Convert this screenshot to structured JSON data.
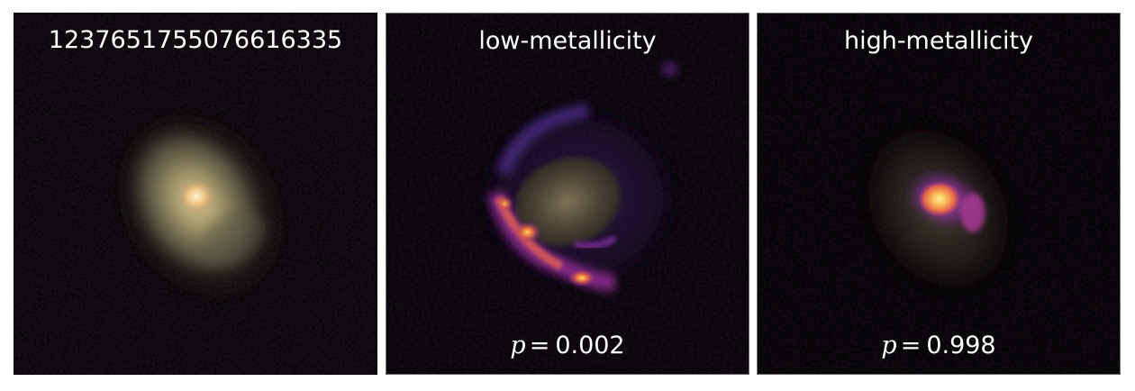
{
  "panels": [
    {
      "title": "1237651755076616335"
    },
    {
      "title": "low-metallicity",
      "prob_symbol": "p",
      "prob_eq": "=",
      "prob_value": "0.002"
    },
    {
      "title": "high-metallicity",
      "prob_symbol": "p",
      "prob_eq": "=",
      "prob_value": "0.998"
    }
  ],
  "colors": {
    "background": "#020104",
    "galaxy_core": "#f7d9a3",
    "galaxy_disk": "#8d8a66",
    "heat_low": "#5b1e8c",
    "heat_mid": "#d4508a",
    "heat_high": "#fbc05a"
  }
}
